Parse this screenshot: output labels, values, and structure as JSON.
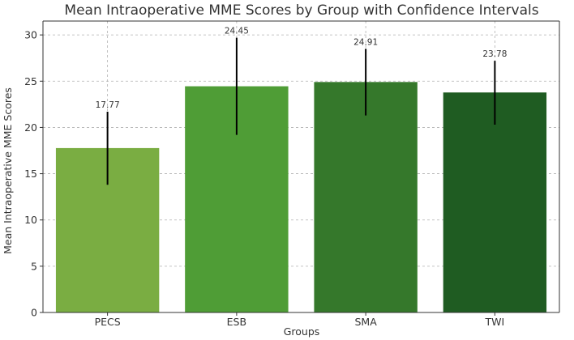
{
  "chart_data": {
    "type": "bar",
    "title": "Mean Intraoperative MME Scores by Group with Confidence Intervals",
    "xlabel": "Groups",
    "ylabel": "Mean Intraoperative MME Scores",
    "categories": [
      "PECS",
      "ESB",
      "SMA",
      "TWI"
    ],
    "values": [
      17.77,
      24.45,
      24.91,
      23.78
    ],
    "value_labels": [
      "17.77",
      "24.45",
      "24.91",
      "23.78"
    ],
    "ci_lower": [
      13.8,
      19.2,
      21.3,
      20.3
    ],
    "ci_upper": [
      21.7,
      29.7,
      28.5,
      27.2
    ],
    "bar_colors": [
      "#7aad42",
      "#4f9d36",
      "#35782b",
      "#1f5c22"
    ],
    "ylim": [
      0,
      31.5
    ],
    "yticks": [
      0,
      5,
      10,
      15,
      20,
      25,
      30
    ],
    "ytick_labels": [
      "0",
      "5",
      "10",
      "15",
      "20",
      "25",
      "30"
    ],
    "grid": true,
    "legend": "none"
  }
}
